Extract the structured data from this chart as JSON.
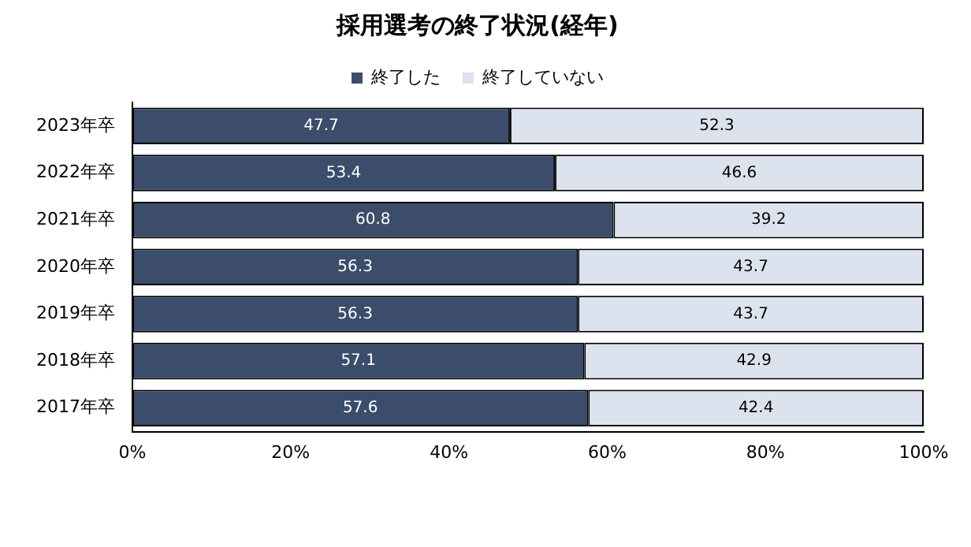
{
  "chart_data": {
    "type": "bar",
    "title": "採用選考の終了状況(経年)",
    "orientation": "horizontal",
    "stacked": true,
    "categories": [
      "2023年卒",
      "2022年卒",
      "2021年卒",
      "2020年卒",
      "2019年卒",
      "2018年卒",
      "2017年卒"
    ],
    "series": [
      {
        "name": "終了した",
        "color": "#3b4d6b",
        "values": [
          47.7,
          53.4,
          60.8,
          56.3,
          56.3,
          57.1,
          57.6
        ]
      },
      {
        "name": "終了していない",
        "color": "#dce3ee",
        "values": [
          52.3,
          46.6,
          39.2,
          43.7,
          43.7,
          42.9,
          42.4
        ]
      }
    ],
    "xlim": [
      0,
      100
    ],
    "xticks": [
      {
        "value": 0,
        "label": "0%"
      },
      {
        "value": 20,
        "label": "20%"
      },
      {
        "value": 40,
        "label": "40%"
      },
      {
        "value": 60,
        "label": "60%"
      },
      {
        "value": 80,
        "label": "80%"
      },
      {
        "value": 100,
        "label": "100%"
      }
    ],
    "data_labels": true,
    "legend": "top",
    "grid": false
  }
}
